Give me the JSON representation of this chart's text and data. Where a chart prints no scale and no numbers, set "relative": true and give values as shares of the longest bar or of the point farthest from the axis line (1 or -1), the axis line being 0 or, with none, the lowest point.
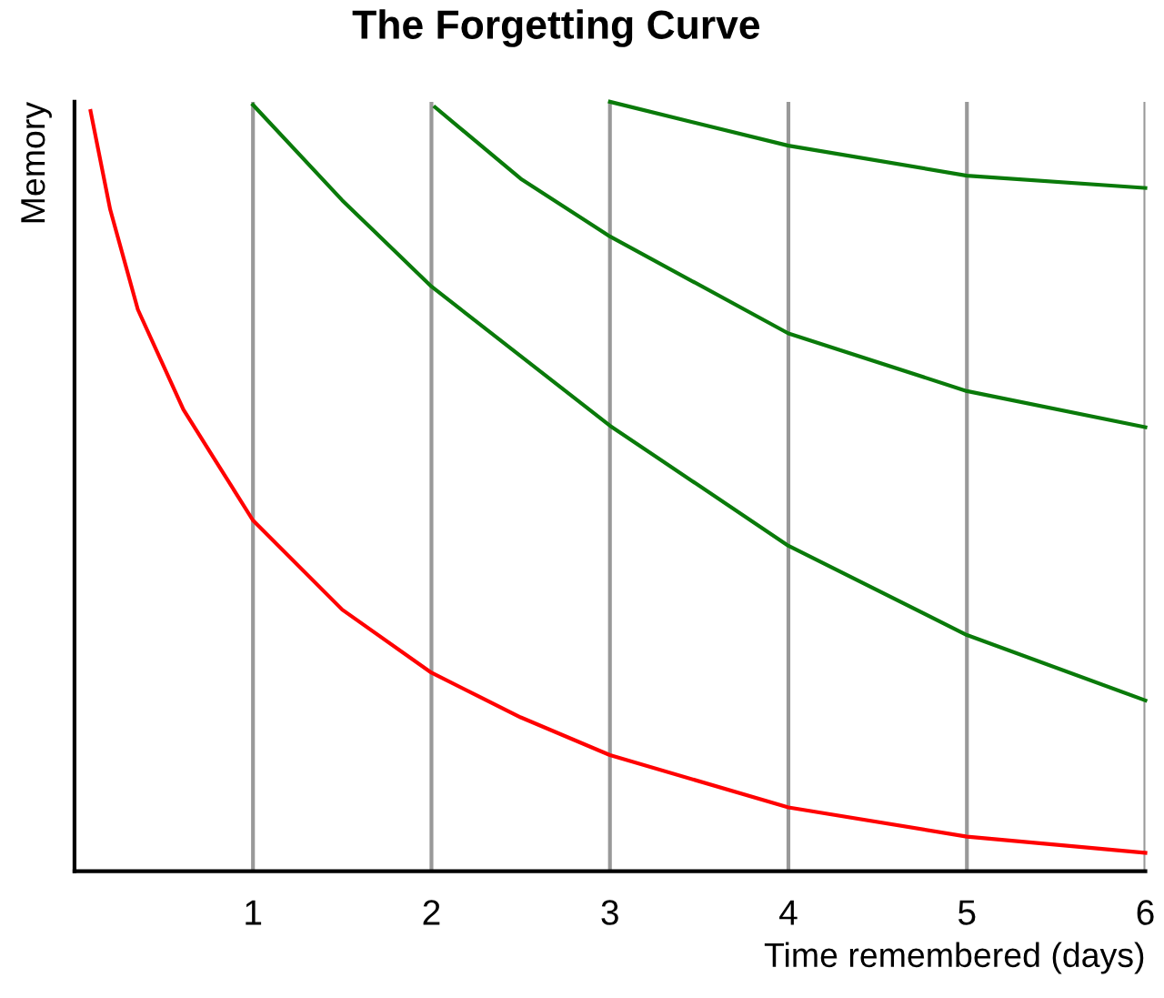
{
  "chart_data": {
    "type": "line",
    "title": "The Forgetting Curve",
    "xlabel": "Time remembered (days)",
    "ylabel": "Memory",
    "relative": true,
    "xlim": [
      0,
      6
    ],
    "xticks": [
      1,
      2,
      3,
      4,
      5,
      6
    ],
    "grid": "x",
    "marker": "none",
    "line_style": "solid",
    "series": [
      {
        "color": "#ff0000",
        "x": [
          0.09,
          0.2,
          0.355,
          0.61,
          1,
          1.5,
          2,
          2.5,
          3,
          4,
          5,
          6
        ],
        "values": [
          0.988,
          0.86,
          0.73,
          0.6,
          0.456,
          0.34,
          0.258,
          0.2,
          0.151,
          0.083,
          0.045,
          0.024
        ]
      },
      {
        "color": "#0a7a0a",
        "x": [
          1,
          1.5,
          2,
          3,
          4,
          5,
          6
        ],
        "values": [
          0.996,
          0.872,
          0.76,
          0.579,
          0.423,
          0.307,
          0.222
        ]
      },
      {
        "color": "#0a7a0a",
        "x": [
          2.02,
          2.5,
          3,
          4,
          5,
          6
        ],
        "values": [
          0.993,
          0.9,
          0.825,
          0.699,
          0.624,
          0.577
        ]
      },
      {
        "color": "#0a7a0a",
        "x": [
          3,
          4,
          5,
          6
        ],
        "values": [
          1.0,
          0.943,
          0.904,
          0.888
        ]
      }
    ]
  }
}
